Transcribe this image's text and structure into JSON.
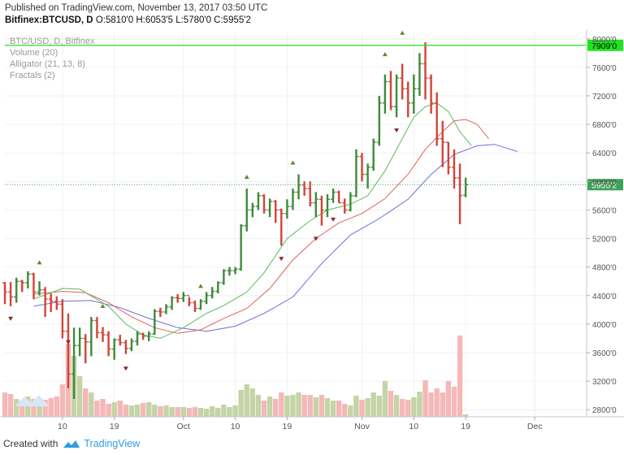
{
  "header": {
    "published": "Published on TradingView.com, November 13, 2017 03:50 UTC",
    "symbol": "Bitfinex:BTCUSD, D",
    "ohlc": "O:5810'0 H:6053'5 L:5780'0 C:5955'2"
  },
  "legend": {
    "pair": "BTC/USD, D, Bitfinex",
    "volume": "Volume (20)",
    "alligator": "Alligator (21, 13, 8)",
    "fractals": "Fractals (2)"
  },
  "footer": {
    "created": "Created with",
    "brand": "TradingView"
  },
  "colors": {
    "up": "#3f8a3a",
    "down": "#d3443a",
    "vol_up": "#c4d4a6",
    "vol_down": "#f4b8b8",
    "jaw": "#6d6cd8",
    "teeth": "#e0625a",
    "lips": "#5cb85c",
    "hline": "#1ee61e",
    "last_price": "#3fa15a",
    "brand": "#2f9be5"
  },
  "chart_data": {
    "type": "ohlc",
    "title": "BTC/USD, D, Bitfinex",
    "ylim": [
      2700,
      8100
    ],
    "yticks": [
      2800,
      3200,
      3600,
      4000,
      4400,
      4800,
      5200,
      5600,
      6000,
      6400,
      6800,
      7200,
      7600,
      8000
    ],
    "ytick_labels": [
      "2800'0",
      "3200'0",
      "3600'0",
      "4000'0",
      "4400'0",
      "4800'0",
      "5200'0",
      "5600'0",
      "6000'0",
      "6400'0",
      "6800'0",
      "7200'0",
      "7600'0",
      "8000'0"
    ],
    "x_start": "2017-08-31",
    "x_end": "2017-12-10",
    "xticks": [
      {
        "date": "2017-09-10",
        "label": "10"
      },
      {
        "date": "2017-09-19",
        "label": "19"
      },
      {
        "date": "2017-10-01",
        "label": "Oct"
      },
      {
        "date": "2017-10-10",
        "label": "10"
      },
      {
        "date": "2017-10-19",
        "label": "19"
      },
      {
        "date": "2017-11-01",
        "label": "Nov"
      },
      {
        "date": "2017-11-10",
        "label": "10"
      },
      {
        "date": "2017-11-19",
        "label": "19"
      },
      {
        "date": "2017-12-01",
        "label": "Dec"
      }
    ],
    "horizontal_line": {
      "value": 7909,
      "label": "7909'0"
    },
    "last_price": {
      "value": 5955.2,
      "label": "5955'2"
    },
    "start_date": "2017-08-31",
    "bars": [
      [
        4580,
        4590,
        4280,
        4450
      ],
      [
        4450,
        4590,
        4250,
        4380
      ],
      [
        4380,
        4650,
        4300,
        4600
      ],
      [
        4600,
        4620,
        4450,
        4580
      ],
      [
        4580,
        4740,
        4500,
        4700
      ],
      [
        4700,
        4720,
        4350,
        4450
      ],
      [
        4450,
        4600,
        4400,
        4480
      ],
      [
        4480,
        4520,
        4100,
        4350
      ],
      [
        4350,
        4430,
        4170,
        4320
      ],
      [
        4320,
        4390,
        4200,
        4280
      ],
      [
        4280,
        4350,
        3800,
        3900
      ],
      [
        3900,
        4150,
        3100,
        3300
      ],
      [
        3300,
        3950,
        2950,
        3700
      ],
      [
        3700,
        3950,
        3550,
        3800
      ],
      [
        3800,
        3860,
        3450,
        3750
      ],
      [
        3750,
        4100,
        3550,
        4050
      ],
      [
        4050,
        4100,
        3800,
        3880
      ],
      [
        3880,
        3960,
        3750,
        3850
      ],
      [
        3850,
        3900,
        3550,
        3650
      ],
      [
        3650,
        3800,
        3500,
        3780
      ],
      [
        3780,
        3850,
        3700,
        3740
      ],
      [
        3740,
        3780,
        3580,
        3660
      ],
      [
        3660,
        3800,
        3620,
        3760
      ],
      [
        3760,
        3900,
        3700,
        3860
      ],
      [
        3860,
        3880,
        3780,
        3830
      ],
      [
        3830,
        3900,
        3760,
        3860
      ],
      [
        3860,
        4210,
        3850,
        4180
      ],
      [
        4180,
        4230,
        4100,
        4170
      ],
      [
        4170,
        4280,
        4140,
        4240
      ],
      [
        4240,
        4390,
        4200,
        4370
      ],
      [
        4370,
        4420,
        4300,
        4360
      ],
      [
        4360,
        4450,
        4310,
        4400
      ],
      [
        4400,
        4380,
        4250,
        4300
      ],
      [
        4300,
        4330,
        4170,
        4220
      ],
      [
        4220,
        4350,
        4200,
        4320
      ],
      [
        4320,
        4450,
        4280,
        4400
      ],
      [
        4400,
        4520,
        4360,
        4460
      ],
      [
        4460,
        4600,
        4430,
        4580
      ],
      [
        4580,
        4770,
        4550,
        4750
      ],
      [
        4750,
        4800,
        4680,
        4750
      ],
      [
        4750,
        4800,
        4700,
        4770
      ],
      [
        4770,
        5400,
        4750,
        5380
      ],
      [
        5380,
        5900,
        5300,
        5600
      ],
      [
        5600,
        5700,
        5500,
        5650
      ],
      [
        5650,
        5850,
        5600,
        5800
      ],
      [
        5800,
        5820,
        5550,
        5600
      ],
      [
        5600,
        5760,
        5500,
        5720
      ],
      [
        5720,
        5740,
        5420,
        5600
      ],
      [
        5600,
        5620,
        5100,
        5550
      ],
      [
        5550,
        5750,
        5480,
        5650
      ],
      [
        5650,
        5900,
        5600,
        5850
      ],
      [
        5850,
        6100,
        5750,
        5950
      ],
      [
        5950,
        6000,
        5800,
        5900
      ],
      [
        5900,
        6000,
        5650,
        5700
      ],
      [
        5700,
        5850,
        5500,
        5750
      ],
      [
        5750,
        5800,
        5380,
        5600
      ],
      [
        5600,
        5820,
        5500,
        5750
      ],
      [
        5750,
        5900,
        5700,
        5850
      ],
      [
        5850,
        5870,
        5700,
        5700
      ],
      [
        5700,
        5760,
        5550,
        5600
      ],
      [
        5600,
        5850,
        5580,
        5800
      ],
      [
        5800,
        6450,
        5780,
        6350
      ],
      [
        6350,
        6400,
        6000,
        6100
      ],
      [
        6100,
        6250,
        5900,
        6200
      ],
      [
        6200,
        6600,
        6150,
        6550
      ],
      [
        6550,
        7200,
        6500,
        7100
      ],
      [
        7100,
        7500,
        6950,
        7400
      ],
      [
        7400,
        7550,
        7000,
        7050
      ],
      [
        7050,
        7500,
        6900,
        7450
      ],
      [
        7450,
        7650,
        7150,
        7300
      ],
      [
        7300,
        7400,
        6900,
        7100
      ],
      [
        7100,
        7500,
        6950,
        7300
      ],
      [
        7300,
        7800,
        7200,
        7650
      ],
      [
        7650,
        7950,
        7150,
        7450
      ],
      [
        7450,
        7500,
        6950,
        7100
      ],
      [
        7100,
        7250,
        6500,
        6600
      ],
      [
        6600,
        6850,
        6200,
        6550
      ],
      [
        6550,
        6550,
        6100,
        6200
      ],
      [
        6200,
        6450,
        5900,
        6050
      ],
      [
        6050,
        6250,
        5400,
        5800
      ],
      [
        5810,
        6054,
        5780,
        5955
      ]
    ],
    "volumes": [
      0.3,
      0.28,
      0.22,
      0.2,
      0.25,
      0.22,
      0.2,
      0.21,
      0.23,
      0.25,
      0.4,
      0.9,
      0.75,
      0.5,
      0.35,
      0.3,
      0.2,
      0.22,
      0.16,
      0.18,
      0.2,
      0.15,
      0.14,
      0.15,
      0.17,
      0.18,
      0.15,
      0.13,
      0.14,
      0.12,
      0.12,
      0.12,
      0.11,
      0.12,
      0.11,
      0.1,
      0.13,
      0.11,
      0.15,
      0.12,
      0.14,
      0.33,
      0.4,
      0.35,
      0.27,
      0.2,
      0.25,
      0.22,
      0.3,
      0.26,
      0.27,
      0.3,
      0.27,
      0.27,
      0.24,
      0.27,
      0.23,
      0.2,
      0.2,
      0.16,
      0.14,
      0.26,
      0.21,
      0.23,
      0.3,
      0.26,
      0.44,
      0.32,
      0.27,
      0.22,
      0.21,
      0.24,
      0.31,
      0.45,
      0.3,
      0.35,
      0.3,
      0.44,
      0.37,
      1.0,
      0.03
    ],
    "alligator": {
      "lips_label": "Lips (8)",
      "teeth_label": "Teeth (13)",
      "jaw_label": "Jaw (21)",
      "lips": [
        [
          "2017-09-05",
          4350
        ],
        [
          "2017-09-10",
          4500
        ],
        [
          "2017-09-13",
          4490
        ],
        [
          "2017-09-18",
          4250
        ],
        [
          "2017-09-21",
          4000
        ],
        [
          "2017-09-24",
          3850
        ],
        [
          "2017-09-27",
          3800
        ],
        [
          "2017-10-01",
          3950
        ],
        [
          "2017-10-05",
          4150
        ],
        [
          "2017-10-08",
          4260
        ],
        [
          "2017-10-12",
          4450
        ],
        [
          "2017-10-15",
          4720
        ],
        [
          "2017-10-19",
          5200
        ],
        [
          "2017-10-23",
          5450
        ],
        [
          "2017-10-26",
          5600
        ],
        [
          "2017-10-30",
          5680
        ],
        [
          "2017-11-02",
          5800
        ],
        [
          "2017-11-05",
          6150
        ],
        [
          "2017-11-08",
          6600
        ],
        [
          "2017-11-10",
          6900
        ],
        [
          "2017-11-12",
          7050
        ],
        [
          "2017-11-14",
          7100
        ],
        [
          "2017-11-16",
          6980
        ],
        [
          "2017-11-18",
          6700
        ],
        [
          "2017-11-20",
          6500
        ]
      ],
      "teeth": [
        [
          "2017-09-05",
          4420
        ],
        [
          "2017-09-10",
          4460
        ],
        [
          "2017-09-14",
          4440
        ],
        [
          "2017-09-18",
          4300
        ],
        [
          "2017-09-22",
          4100
        ],
        [
          "2017-09-26",
          3950
        ],
        [
          "2017-09-30",
          3870
        ],
        [
          "2017-10-04",
          3920
        ],
        [
          "2017-10-08",
          4080
        ],
        [
          "2017-10-12",
          4220
        ],
        [
          "2017-10-16",
          4500
        ],
        [
          "2017-10-20",
          4900
        ],
        [
          "2017-10-24",
          5200
        ],
        [
          "2017-10-28",
          5420
        ],
        [
          "2017-11-01",
          5550
        ],
        [
          "2017-11-05",
          5760
        ],
        [
          "2017-11-09",
          6100
        ],
        [
          "2017-11-12",
          6450
        ],
        [
          "2017-11-15",
          6700
        ],
        [
          "2017-11-17",
          6850
        ],
        [
          "2017-11-19",
          6870
        ],
        [
          "2017-11-21",
          6800
        ],
        [
          "2017-11-23",
          6600
        ]
      ],
      "jaw": [
        [
          "2017-09-05",
          4250
        ],
        [
          "2017-09-10",
          4320
        ],
        [
          "2017-09-15",
          4330
        ],
        [
          "2017-09-20",
          4230
        ],
        [
          "2017-09-25",
          4080
        ],
        [
          "2017-09-30",
          3950
        ],
        [
          "2017-10-05",
          3900
        ],
        [
          "2017-10-10",
          3970
        ],
        [
          "2017-10-15",
          4150
        ],
        [
          "2017-10-20",
          4380
        ],
        [
          "2017-10-25",
          4850
        ],
        [
          "2017-10-30",
          5250
        ],
        [
          "2017-11-04",
          5480
        ],
        [
          "2017-11-09",
          5750
        ],
        [
          "2017-11-13",
          6100
        ],
        [
          "2017-11-17",
          6380
        ],
        [
          "2017-11-21",
          6500
        ],
        [
          "2017-11-24",
          6520
        ],
        [
          "2017-11-28",
          6420
        ]
      ]
    },
    "fractals_up": [
      [
        "2017-09-06",
        4780
      ],
      [
        "2017-09-17",
        4170
      ],
      [
        "2017-10-04",
        4450
      ],
      [
        "2017-10-12",
        5980
      ],
      [
        "2017-10-20",
        6180
      ],
      [
        "2017-11-05",
        7700
      ],
      [
        "2017-11-08",
        8000
      ]
    ],
    "fractals_down": [
      [
        "2017-09-01",
        4160
      ],
      [
        "2017-09-11",
        3830
      ],
      [
        "2017-09-21",
        3460
      ],
      [
        "2017-10-18",
        5000
      ],
      [
        "2017-10-24",
        5280
      ],
      [
        "2017-10-27",
        5550
      ],
      [
        "2017-11-07",
        6800
      ]
    ]
  }
}
